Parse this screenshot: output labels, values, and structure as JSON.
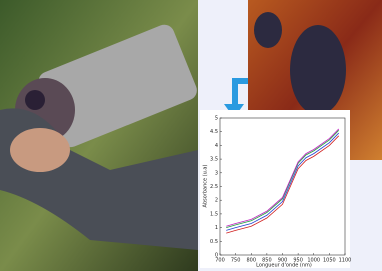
{
  "chart_data": {
    "type": "line",
    "x_label": "Longueur d'onde (nm)",
    "y_label": "Absorbance (u.a)",
    "x": [
      720,
      750,
      800,
      850,
      900,
      925,
      950,
      975,
      1000,
      1050,
      1080
    ],
    "series": [
      {
        "color": "#d02020",
        "values": [
          0.8,
          0.9,
          1.05,
          1.35,
          1.85,
          2.5,
          3.15,
          3.45,
          3.6,
          4.0,
          4.35
        ]
      },
      {
        "color": "#2040d0",
        "values": [
          0.9,
          1.0,
          1.15,
          1.45,
          1.95,
          2.6,
          3.25,
          3.55,
          3.7,
          4.1,
          4.45
        ]
      },
      {
        "color": "#20a040",
        "values": [
          1.0,
          1.1,
          1.25,
          1.55,
          2.05,
          2.7,
          3.35,
          3.65,
          3.8,
          4.2,
          4.55
        ]
      },
      {
        "color": "#c020c0",
        "values": [
          1.05,
          1.15,
          1.3,
          1.6,
          2.1,
          2.75,
          3.4,
          3.7,
          3.85,
          4.25,
          4.6
        ]
      }
    ],
    "xlim": [
      700,
      1100
    ],
    "ylim": [
      0,
      5
    ],
    "xticks": [
      700,
      750,
      800,
      850,
      900,
      950,
      1000,
      1050,
      1100
    ],
    "yticks": [
      0,
      0.5,
      1,
      1.5,
      2,
      2.5,
      3,
      3.5,
      4,
      4.5,
      5
    ]
  }
}
